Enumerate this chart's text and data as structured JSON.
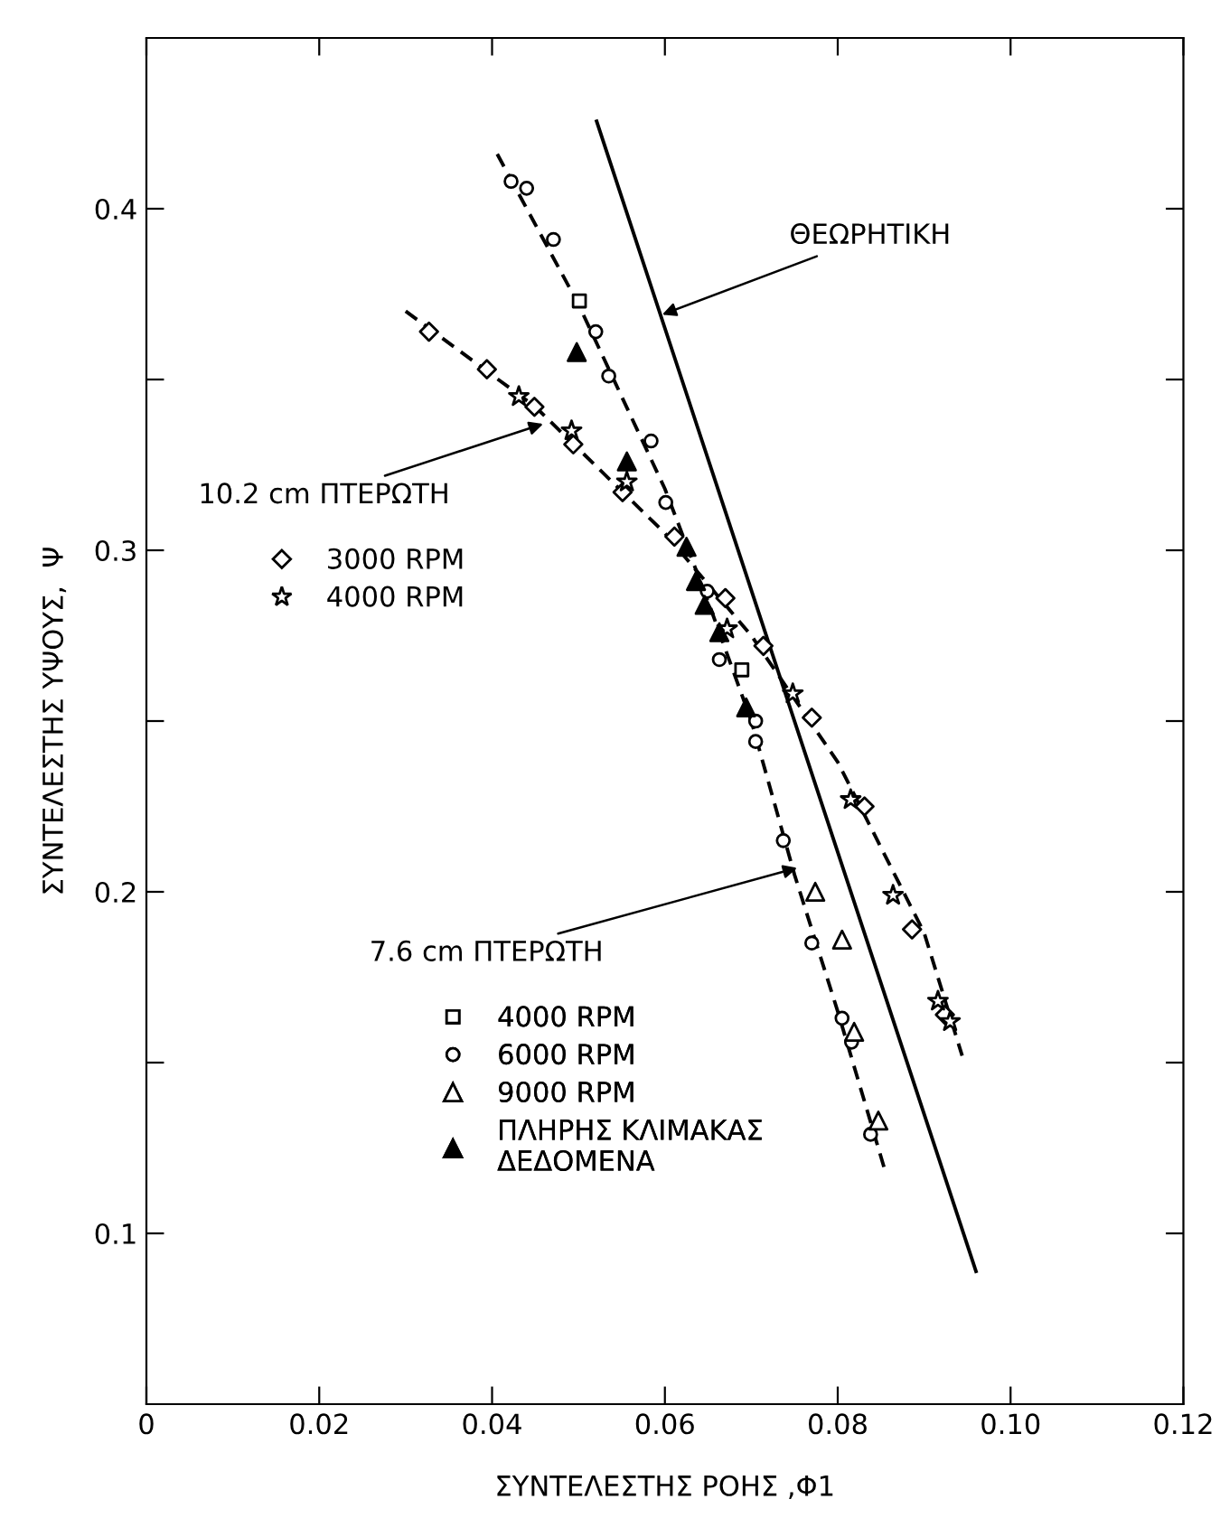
{
  "chart_data": {
    "type": "scatter",
    "xlabel": "ΣΥΝΤΕΛΕΣΤΗΣ ΡΟΗΣ ,Φ1",
    "ylabel": "ΣΥΝΤΕΛΕΣΤΗΣ ΥΨΟΥΣ,  Ψ",
    "xlim": [
      0,
      0.12
    ],
    "ylim": [
      0.05,
      0.45
    ],
    "xticks": [
      0,
      0.02,
      0.04,
      0.06,
      0.08,
      {
        "value": 0.1,
        "label": "0.10"
      },
      0.12
    ],
    "yticks": [
      0.1,
      {
        "value": 0.15,
        "label": null
      },
      0.2,
      {
        "value": 0.25,
        "label": null
      },
      0.3,
      {
        "value": 0.35,
        "label": null
      },
      0.4
    ],
    "grid": false,
    "legend": "left",
    "annotations": [
      {
        "text": "ΘΕΩΡΗΤΙΚΗ",
        "x": 0.0597,
        "y": 0.369
      },
      {
        "text": "10.2 cm ΠΤΕΡΩΤΗ",
        "x": 0.0459,
        "y": 0.337
      },
      {
        "text": "7.6 cm ΠΤΕΡΩΤΗ",
        "x": 0.0753,
        "y": 0.207
      }
    ],
    "series": [
      {
        "type": "line",
        "line_style": "dashed",
        "color": "#000000",
        "x": [
          0.03,
          0.045,
          0.06,
          0.07,
          0.08,
          0.09,
          0.0944
        ],
        "values": [
          0.37,
          0.342,
          0.305,
          0.275,
          0.238,
          0.188,
          0.152
        ]
      },
      {
        "name": "3000 RPM",
        "marker": "diamond",
        "color": "#ffffff",
        "x": [
          0.0327,
          0.0394,
          0.0449,
          0.0494,
          0.0551,
          0.0611,
          0.067,
          0.0714,
          0.077,
          0.0831,
          0.0886,
          0.0924
        ],
        "values": [
          0.364,
          0.353,
          0.342,
          0.331,
          0.317,
          0.304,
          0.286,
          0.272,
          0.251,
          0.225,
          0.189,
          0.164
        ]
      },
      {
        "name": "4000 RPM",
        "marker": "star",
        "color": "#ffffff",
        "x": [
          0.0431,
          0.0492,
          0.0556,
          0.0672,
          0.0748,
          0.0815,
          0.0864,
          0.0916,
          0.093
        ],
        "values": [
          0.345,
          0.335,
          0.32,
          0.277,
          0.258,
          0.227,
          0.199,
          0.168,
          0.162
        ]
      },
      {
        "type": "line",
        "line_style": "dashed",
        "color": "#000000",
        "x": [
          0.0406,
          0.05,
          0.06,
          0.065,
          0.07,
          0.075,
          0.08,
          0.0854
        ],
        "values": [
          0.416,
          0.372,
          0.318,
          0.285,
          0.25,
          0.205,
          0.165,
          0.119
        ]
      },
      {
        "name": "4000 RPM",
        "marker": "square",
        "color": "#ffffff",
        "x": [
          0.0501,
          0.0689
        ],
        "values": [
          0.373,
          0.265
        ]
      },
      {
        "name": "6000 RPM",
        "marker": "circle",
        "color": "#ffffff",
        "x": [
          0.0422,
          0.044,
          0.0471,
          0.052,
          0.0535,
          0.0584,
          0.0601,
          0.0649,
          0.0663,
          0.0705,
          0.0705,
          0.0737,
          0.077,
          0.0805,
          0.0816,
          0.0838
        ],
        "values": [
          0.408,
          0.406,
          0.391,
          0.364,
          0.351,
          0.332,
          0.314,
          0.288,
          0.268,
          0.25,
          0.244,
          0.215,
          0.185,
          0.163,
          0.156,
          0.129
        ]
      },
      {
        "name": "9000 RPM",
        "marker": "triangle",
        "color": "#ffffff",
        "x": [
          0.0774,
          0.0805,
          0.0819,
          0.0847
        ],
        "values": [
          0.2,
          0.186,
          0.159,
          0.133
        ]
      },
      {
        "name": "ΠΛΗΡΗΣ ΚΛΙΜΑΚΑΣ\nΔΕΔΟΜΕΝΑ",
        "marker": "triangle",
        "color": "#000000",
        "x": [
          0.0498,
          0.0556,
          0.0625,
          0.0636,
          0.0646,
          0.0663,
          0.0694
        ],
        "values": [
          0.358,
          0.326,
          0.301,
          0.291,
          0.284,
          0.276,
          0.254
        ]
      },
      {
        "type": "line",
        "line_style": "solid",
        "color": "#000000",
        "x": [
          0.0521,
          0.096
        ],
        "values": [
          0.4256,
          0.0889
        ]
      }
    ]
  }
}
